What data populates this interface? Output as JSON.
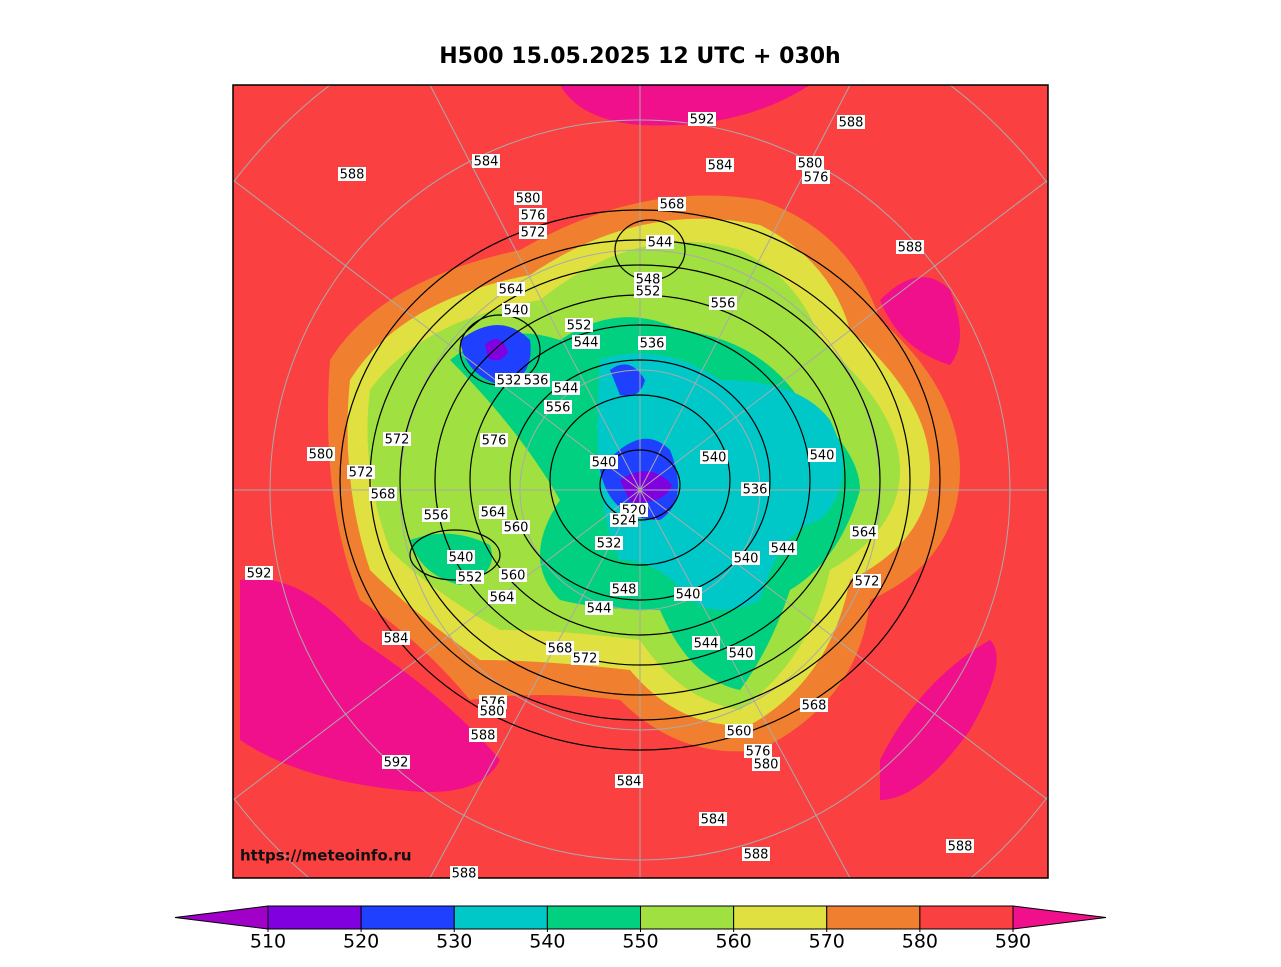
{
  "title": "H500  15.05.2025 12 UTC + 030h",
  "source": "https://meteoinfo.ru",
  "contour_labels": [
    592,
    588,
    584,
    584,
    580,
    576,
    588,
    580,
    576,
    572,
    568,
    544,
    588,
    548,
    552,
    564,
    540,
    556,
    552,
    544,
    536,
    532,
    536,
    544,
    556,
    572,
    576,
    580,
    540,
    540,
    572,
    540,
    568,
    536,
    520,
    556,
    564,
    560,
    524,
    564,
    532,
    544,
    540,
    540,
    552,
    560,
    592,
    572,
    548,
    540,
    564,
    544,
    584,
    544,
    540,
    568,
    572,
    576,
    580,
    568,
    560,
    576,
    580,
    588,
    592,
    584,
    584,
    588,
    588,
    588
  ],
  "colorbar": {
    "ticks": [
      510,
      520,
      530,
      540,
      550,
      560,
      570,
      580,
      590
    ],
    "colors": [
      "#a000c8",
      "#8000e0",
      "#2040ff",
      "#00c8c8",
      "#00d080",
      "#a0e040",
      "#e0e040",
      "#f08030",
      "#fa4040",
      "#f0108c"
    ]
  }
}
